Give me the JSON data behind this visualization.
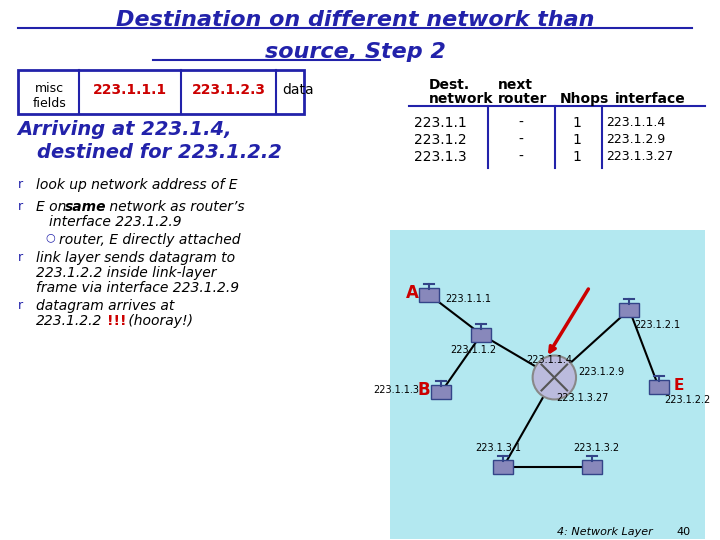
{
  "title_line1": "Destination on different network than",
  "title_line2": "source, Step 2",
  "title_color": "#2222aa",
  "bg_color": "#ffffff",
  "misc_box": {
    "label1": "misc",
    "label2": "fields",
    "addr1": "223.1.1.1",
    "addr2": "223.1.2.3",
    "data_label": "data",
    "addr_color": "#cc0000",
    "border_color": "#2222aa"
  },
  "arriving_color": "#2222aa",
  "bullet_color": "#2222aa",
  "table_rows": [
    [
      "223.1.1",
      "-",
      "1",
      "223.1.1.4"
    ],
    [
      "223.1.2",
      "-",
      "1",
      "223.1.2.9"
    ],
    [
      "223.1.3",
      "-",
      "1",
      "223.1.3.27"
    ]
  ],
  "network_bg_color": "#b3e8f0",
  "router_color": "#bbbbdd",
  "arrow_color": "#cc0000",
  "red_color": "#cc0000",
  "footer_text": "4: Network Layer",
  "footer_num": "40"
}
